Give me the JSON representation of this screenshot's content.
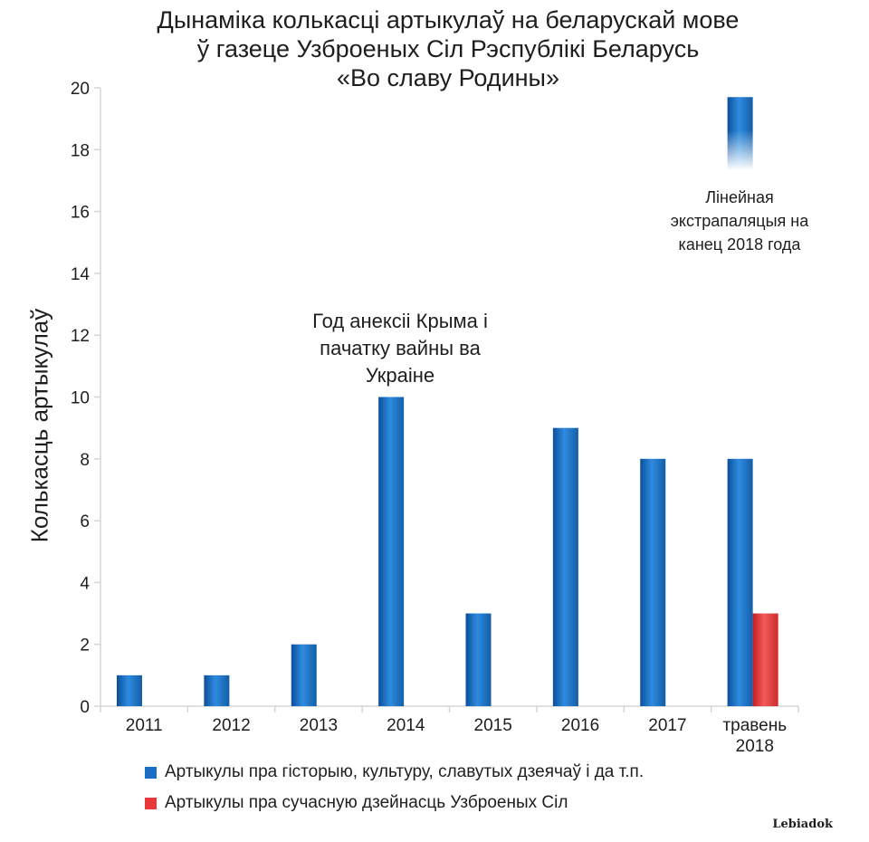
{
  "chart_data": {
    "type": "bar",
    "title": [
      "Дынаміка колькасці артыкулаў на беларускай мове",
      "ў газеце Узброеных Сіл Рэспублікі Беларусь",
      "«Во славу Родины»"
    ],
    "xlabel": "",
    "ylabel": "Колькасць артыкулаў",
    "ylim": [
      0,
      20
    ],
    "yticks": [
      0,
      2,
      4,
      6,
      8,
      10,
      12,
      14,
      16,
      18,
      20
    ],
    "categories": [
      "2011",
      "2012",
      "2013",
      "2014",
      "2015",
      "2016",
      "2017",
      [
        "травень",
        "2018"
      ]
    ],
    "series": [
      {
        "name": "Артыкулы пра гісторыю, культуру, славутых дзеячаў і да т.п.",
        "color": "#1a6fc4",
        "values": [
          1,
          1,
          2,
          10,
          3,
          9,
          8,
          8
        ]
      },
      {
        "name": "Артыкулы пра сучасную дзейнасць Узброеных Сіл",
        "color": "#e8383a",
        "values": [
          null,
          null,
          null,
          null,
          null,
          null,
          null,
          3
        ]
      }
    ],
    "extrapolation": {
      "category_index": 7,
      "series": 0,
      "value": 19.7
    },
    "annotations": [
      {
        "lines": [
          "Год анексіі Крыма і",
          "пачатку вайны ва",
          "Украіне"
        ]
      },
      {
        "lines": [
          "Лінейная",
          "экстрапаляцыя на",
          "канец 2018 года"
        ]
      }
    ],
    "grid": false,
    "legend_position": "bottom-left"
  },
  "watermark": "Lebiadok"
}
